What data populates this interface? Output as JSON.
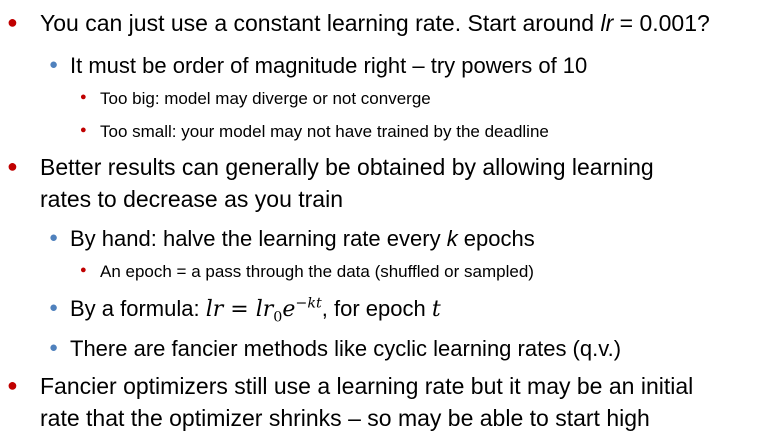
{
  "bullets": {
    "b1": {
      "text": "You can just use a constant learning rate. Start around ",
      "lr_var": "lr",
      "lr_value": " = 0.001?"
    },
    "b1_1": {
      "text": "It must be order of magnitude right – try powers of 10"
    },
    "b1_1_1": {
      "text": "Too big: model may diverge or not converge"
    },
    "b1_1_2": {
      "text": "Too small: your model may not have trained by the deadline"
    },
    "b2": {
      "line1": "Better results can generally be obtained by allowing learning",
      "line2": "rates to decrease as you train"
    },
    "b2_1": {
      "text": "By hand: halve the learning rate every ",
      "k": "k",
      "suffix": " epochs"
    },
    "b2_1_1": {
      "text": "An epoch = a pass through the data (shuffled or sampled)"
    },
    "b2_2": {
      "prefix": "By a formula: ",
      "f_lhs": "lr",
      "f_eq": " = ",
      "f_base": "lr",
      "f_sub": "0",
      "f_e": "e",
      "f_sup": "−kt",
      "suffix": ", for epoch ",
      "t": "t"
    },
    "b2_3": {
      "text": "There are fancier methods like cyclic learning rates (q.v.)"
    },
    "b3": {
      "line1": "Fancier optimizers still use a learning rate but it may be an initial",
      "line2": "rate that the optimizer shrinks – so may be able to start high"
    }
  },
  "colors": {
    "level1_bullet": "#c00000",
    "level2_bullet": "#4f81bd",
    "level3_bullet": "#c00000"
  },
  "icons": {
    "level1": "red-dot-bullet",
    "level2": "blue-dot-bullet",
    "level3": "small-red-dot-bullet"
  }
}
